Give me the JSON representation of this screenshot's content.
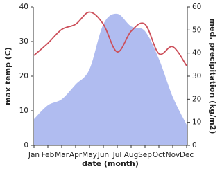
{
  "chart_data": {
    "type": "combo",
    "categories": [
      "Jan",
      "Feb",
      "Mar",
      "Apr",
      "May",
      "Jun",
      "Jul",
      "Aug",
      "Sep",
      "Oct",
      "Nov",
      "Dec"
    ],
    "x_label": "date (month)",
    "y_label": "max temp (C)",
    "y2_label": "med. precipitation (kg/m2)",
    "ylim": [
      0,
      40
    ],
    "yticks": [
      0,
      10,
      20,
      30,
      40
    ],
    "y2lim": [
      0,
      60
    ],
    "y2ticks": [
      0,
      10,
      20,
      30,
      40,
      50,
      60
    ],
    "series": [
      {
        "name": "med. precipitation",
        "type": "area",
        "axis": "y2",
        "color": "#b0bcf0",
        "values": [
          11.4,
          17.4,
          20,
          26.4,
          33,
          52.5,
          57,
          51.6,
          49.5,
          37.5,
          21,
          9
        ]
      },
      {
        "name": "max temp",
        "type": "line",
        "axis": "y",
        "color": "#cc4f5a",
        "values": [
          26,
          29.5,
          33.5,
          35,
          38.5,
          35,
          27,
          33,
          35,
          26.5,
          28.5,
          23
        ]
      }
    ]
  }
}
